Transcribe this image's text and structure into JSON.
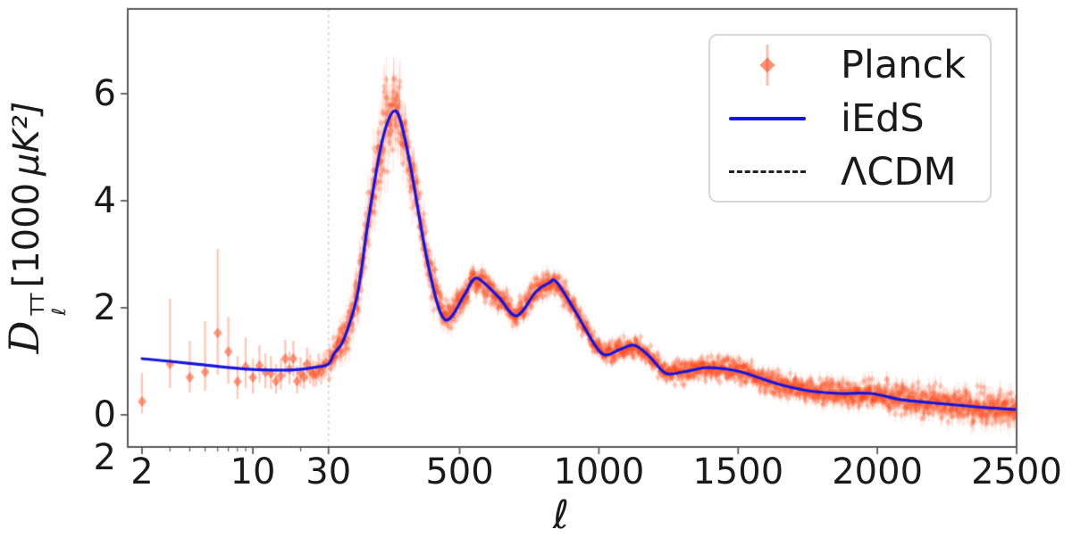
{
  "chart_data": {
    "type": "line",
    "title": "",
    "xlabel": "ℓ",
    "ylabel": "D_ell^TT [1000 uK^2]",
    "ylabel_parts": {
      "symbol": "D",
      "sup": "TT",
      "sub": "ℓ",
      "unit_num": "[1000",
      "unit_sym": "μK²]"
    },
    "x_scale": "log from 2 to 30, linear from 30 to 2500",
    "xlim": [
      1.7,
      2500
    ],
    "ylim": [
      -0.6,
      7.58
    ],
    "x_ticks": [
      2,
      10,
      30,
      500,
      1000,
      1500,
      2000,
      2500
    ],
    "x_minor_ticks": [
      3,
      4,
      5,
      6,
      7,
      8,
      9,
      20
    ],
    "y_ticks": [
      6,
      4,
      2,
      0
    ],
    "corner_tick_label": "2",
    "grid": false,
    "vline": {
      "x": 30,
      "style": "dotted",
      "color": "#c6c6c6"
    },
    "legend": {
      "position": "upper right",
      "entries": [
        "Planck",
        "iEdS",
        "ΛCDM"
      ]
    },
    "colors": {
      "planck": "#ff4719",
      "ieds": "#1616e0",
      "lcdm": "#222222",
      "spine": "#5a5a5a",
      "tick_text": "#1a1a1a"
    },
    "series": [
      {
        "name": "iEdS",
        "type": "line",
        "style": "solid",
        "color": "#1616e0",
        "points": [
          [
            2,
            1.05
          ],
          [
            3,
            1.0
          ],
          [
            5,
            0.93
          ],
          [
            8,
            0.87
          ],
          [
            12,
            0.84
          ],
          [
            18,
            0.84
          ],
          [
            25,
            0.89
          ],
          [
            30,
            0.95
          ],
          [
            50,
            1.15
          ],
          [
            85,
            1.42
          ],
          [
            133,
            2.25
          ],
          [
            171,
            3.6
          ],
          [
            213,
            4.9
          ],
          [
            240,
            5.45
          ],
          [
            267,
            5.68
          ],
          [
            290,
            5.45
          ],
          [
            325,
            4.6
          ],
          [
            389,
            2.75
          ],
          [
            447,
            1.78
          ],
          [
            518,
            2.25
          ],
          [
            545,
            2.5
          ],
          [
            572,
            2.53
          ],
          [
            640,
            2.2
          ],
          [
            704,
            1.85
          ],
          [
            774,
            2.3
          ],
          [
            820,
            2.46
          ],
          [
            848,
            2.48
          ],
          [
            919,
            1.9
          ],
          [
            980,
            1.35
          ],
          [
            1021,
            1.12
          ],
          [
            1075,
            1.22
          ],
          [
            1127,
            1.3
          ],
          [
            1180,
            1.1
          ],
          [
            1239,
            0.78
          ],
          [
            1300,
            0.8
          ],
          [
            1384,
            0.88
          ],
          [
            1450,
            0.86
          ],
          [
            1512,
            0.8
          ],
          [
            1641,
            0.58
          ],
          [
            1753,
            0.45
          ],
          [
            1865,
            0.4
          ],
          [
            1977,
            0.4
          ],
          [
            2089,
            0.28
          ],
          [
            2250,
            0.2
          ],
          [
            2378,
            0.14
          ],
          [
            2500,
            0.1
          ]
        ]
      },
      {
        "name": "ΛCDM",
        "type": "line",
        "style": "dashed",
        "color": "#222222",
        "points_same_as": "iEdS"
      }
    ],
    "planck_low_l": {
      "name": "Planck low-ℓ points [ℓ, D, err_lo, err_hi]",
      "marker": "diamond",
      "points": [
        [
          2,
          0.25,
          0.03,
          0.78
        ],
        [
          3,
          0.95,
          0.5,
          2.17
        ],
        [
          4,
          0.7,
          0.42,
          1.38
        ],
        [
          5,
          0.8,
          0.45,
          1.75
        ],
        [
          6,
          1.53,
          0.75,
          3.1
        ],
        [
          7,
          1.18,
          0.58,
          1.83
        ],
        [
          8,
          0.62,
          0.3,
          1.1
        ],
        [
          9,
          0.9,
          0.5,
          1.45
        ],
        [
          10,
          0.7,
          0.4,
          1.05
        ],
        [
          11,
          0.92,
          0.6,
          1.3
        ],
        [
          12,
          0.8,
          0.5,
          1.15
        ],
        [
          13,
          0.77,
          0.48,
          1.1
        ],
        [
          14,
          0.63,
          0.4,
          0.95
        ],
        [
          15,
          0.73,
          0.47,
          1.05
        ],
        [
          16,
          1.05,
          0.7,
          1.4
        ],
        [
          17,
          0.85,
          0.57,
          1.18
        ],
        [
          18,
          1.05,
          0.72,
          1.38
        ],
        [
          19,
          0.63,
          0.4,
          0.92
        ],
        [
          20,
          0.78,
          0.52,
          1.08
        ],
        [
          21,
          0.7,
          0.48,
          0.98
        ],
        [
          22,
          0.95,
          0.65,
          1.25
        ],
        [
          23,
          0.83,
          0.58,
          1.12
        ],
        [
          24,
          0.75,
          0.52,
          1.02
        ],
        [
          25,
          0.75,
          0.53,
          1.0
        ],
        [
          26,
          0.88,
          0.63,
          1.15
        ],
        [
          27,
          0.8,
          0.57,
          1.05
        ],
        [
          28,
          0.92,
          0.67,
          1.18
        ],
        [
          29,
          0.97,
          0.72,
          1.22
        ]
      ]
    },
    "planck_unbinned": {
      "description": "unbinned per-multipole Planck points scattered about the model",
      "l_min": 30,
      "l_max": 2500,
      "step": 1,
      "seed": 20190417,
      "sigma_anchors": [
        [
          30,
          0.16
        ],
        [
          60,
          0.17
        ],
        [
          100,
          0.2
        ],
        [
          150,
          0.26
        ],
        [
          220,
          0.34
        ],
        [
          280,
          0.34
        ],
        [
          350,
          0.24
        ],
        [
          450,
          0.14
        ],
        [
          600,
          0.12
        ],
        [
          800,
          0.11
        ],
        [
          1000,
          0.09
        ],
        [
          1300,
          0.09
        ],
        [
          1600,
          0.1
        ],
        [
          1900,
          0.12
        ],
        [
          2200,
          0.14
        ],
        [
          2500,
          0.17
        ]
      ]
    }
  }
}
